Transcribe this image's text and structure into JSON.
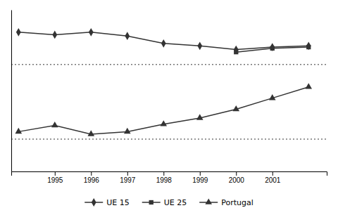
{
  "chart_data": {
    "type": "line",
    "x": [
      1994,
      1995,
      1996,
      1997,
      1998,
      1999,
      2000,
      2001,
      2002
    ],
    "series": [
      {
        "name": "UE 15",
        "color": "#333333",
        "marker": "diamond",
        "line_style": "solid",
        "values": [
          28.7,
          28.5,
          28.7,
          28.4,
          27.8,
          27.6,
          27.3,
          27.5,
          27.6
        ]
      },
      {
        "name": "UE 25",
        "color": "#333333",
        "marker": "square",
        "line_style": "solid",
        "values": [
          null,
          null,
          null,
          null,
          null,
          null,
          27.1,
          27.4,
          27.5
        ]
      },
      {
        "name": "Portugal",
        "color": "#333333",
        "marker": "triangle",
        "line_style": "solid",
        "values": [
          20.7,
          21.2,
          20.5,
          20.7,
          21.3,
          21.8,
          22.5,
          23.4,
          24.3
        ]
      }
    ],
    "hlines": [
      26.1,
      20.1
    ],
    "xlim": [
      1993.8,
      2002.5
    ],
    "xticks": [
      1995,
      1996,
      1997,
      1998,
      1999,
      2000,
      2001
    ],
    "ylim": [
      17.5,
      30.5
    ],
    "tick_labels": "x",
    "grid": false,
    "legend": "bottom"
  }
}
